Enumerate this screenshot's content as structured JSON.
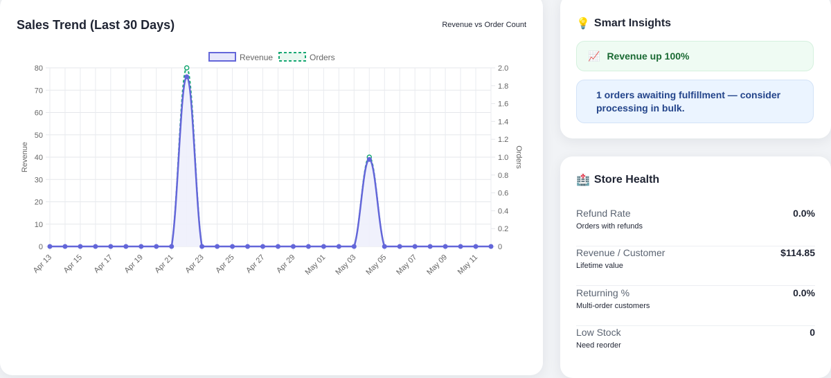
{
  "sales": {
    "title": "Sales Trend (Last 30 Days)",
    "subtitle": "Revenue vs Order Count"
  },
  "chart_data": {
    "type": "line",
    "x": [
      "Apr 13",
      "Apr 14",
      "Apr 15",
      "Apr 16",
      "Apr 17",
      "Apr 18",
      "Apr 19",
      "Apr 20",
      "Apr 21",
      "Apr 22",
      "Apr 23",
      "Apr 24",
      "Apr 25",
      "Apr 26",
      "Apr 27",
      "Apr 28",
      "Apr 29",
      "Apr 30",
      "May 01",
      "May 02",
      "May 03",
      "May 04",
      "May 05",
      "May 06",
      "May 07",
      "May 08",
      "May 09",
      "May 10",
      "May 11",
      "May 12"
    ],
    "x_tick_labels": [
      "Apr 13",
      "Apr 15",
      "Apr 17",
      "Apr 19",
      "Apr 21",
      "Apr 23",
      "Apr 25",
      "Apr 27",
      "Apr 29",
      "May 01",
      "May 03",
      "May 05",
      "May 07",
      "May 09",
      "May 11"
    ],
    "series": [
      {
        "name": "Revenue",
        "axis": "left",
        "values": [
          0,
          0,
          0,
          0,
          0,
          0,
          0,
          0,
          0,
          76,
          0,
          0,
          0,
          0,
          0,
          0,
          0,
          0,
          0,
          0,
          0,
          39,
          0,
          0,
          0,
          0,
          0,
          0,
          0,
          0
        ]
      },
      {
        "name": "Orders",
        "axis": "right",
        "values": [
          0,
          0,
          0,
          0,
          0,
          0,
          0,
          0,
          0,
          2,
          0,
          0,
          0,
          0,
          0,
          0,
          0,
          0,
          0,
          0,
          0,
          1,
          0,
          0,
          0,
          0,
          0,
          0,
          0,
          0
        ]
      }
    ],
    "ylabel": "Revenue",
    "y2label": "Orders",
    "ylim": [
      0,
      80
    ],
    "y_ticks": [
      "0",
      "10",
      "20",
      "30",
      "40",
      "50",
      "60",
      "70",
      "80"
    ],
    "y2lim": [
      0,
      2.0
    ],
    "y2_ticks": [
      "0",
      "0.2",
      "0.4",
      "0.6",
      "0.8",
      "1.0",
      "1.2",
      "1.4",
      "1.6",
      "1.8",
      "2.0"
    ],
    "legend_position": "top",
    "grid": true,
    "colors": {
      "revenue": "#6366d9",
      "revenue_fill": "#eef0fc",
      "orders": "#16a772"
    }
  },
  "insights": {
    "title": "Smart Insights",
    "icon": "lightbulb-icon",
    "revenue_text": "Revenue up 100%",
    "revenue_icon": "chart-trending-up-icon",
    "orders_text": "1 orders awaiting fulfillment — consider processing in bulk."
  },
  "health": {
    "title": "Store Health",
    "icon": "hospital-icon",
    "metrics": [
      {
        "label": "Refund Rate",
        "desc": "Orders with refunds",
        "value": "0.0%"
      },
      {
        "label": "Revenue / Customer",
        "desc": "Lifetime value",
        "value": "$114.85"
      },
      {
        "label": "Returning %",
        "desc": "Multi-order customers",
        "value": "0.0%"
      },
      {
        "label": "Low Stock",
        "desc": "Need reorder",
        "value": "0"
      }
    ]
  }
}
